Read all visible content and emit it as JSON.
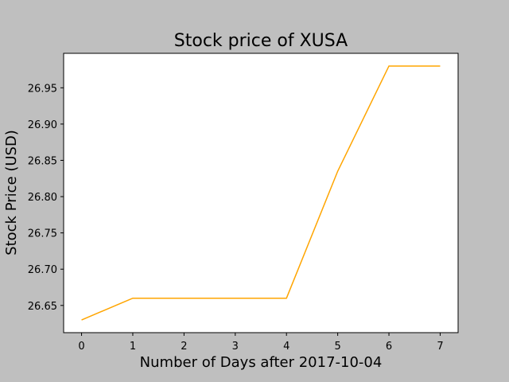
{
  "chart_data": {
    "type": "line",
    "title": "Stock price of XUSA",
    "xlabel": "Number of Days after 2017-10-04",
    "ylabel": "Stock Price (USD)",
    "x": [
      0,
      1,
      2,
      3,
      4,
      5,
      6,
      7
    ],
    "series": [
      {
        "values": [
          26.63,
          26.66,
          26.66,
          26.66,
          26.66,
          26.835,
          26.98,
          26.98
        ],
        "color": "#ffa500"
      }
    ],
    "xticks": [
      0,
      1,
      2,
      3,
      4,
      5,
      6,
      7
    ],
    "xtick_labels": [
      "0",
      "1",
      "2",
      "3",
      "4",
      "5",
      "6",
      "7"
    ],
    "yticks": [
      26.65,
      26.7,
      26.75,
      26.8,
      26.85,
      26.9,
      26.95
    ],
    "ytick_labels": [
      "26.65",
      "26.70",
      "26.75",
      "26.80",
      "26.85",
      "26.90",
      "26.95"
    ],
    "xlim": [
      -0.35,
      7.35
    ],
    "ylim": [
      26.6125,
      26.9975
    ],
    "grid": false,
    "background_color": "#bfbfbf",
    "plot_background_color": "#ffffff"
  }
}
